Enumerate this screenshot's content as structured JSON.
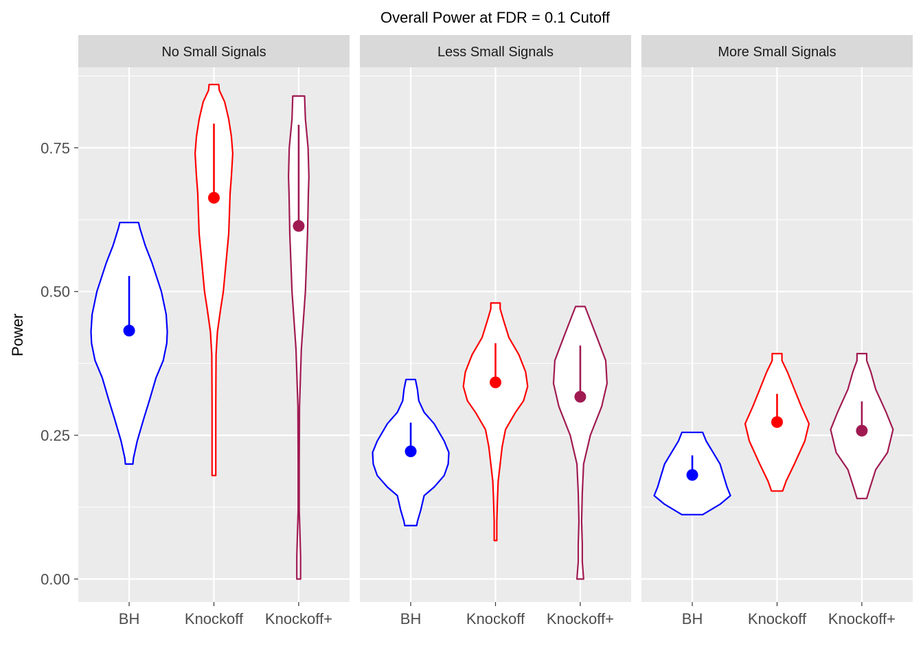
{
  "chart_data": {
    "type": "violin",
    "title": "Overall Power at FDR = 0.1 Cutoff",
    "ylabel": "Power",
    "xlabel": "",
    "ylim": [
      -0.04,
      0.89
    ],
    "yticks": [
      0.0,
      0.25,
      0.5,
      0.75
    ],
    "ytick_labels": [
      "0.00",
      "0.25",
      "0.50",
      "0.75"
    ],
    "categories": [
      "BH",
      "Knockoff",
      "Knockoff+"
    ],
    "colors": {
      "BH": "#0000ff",
      "Knockoff": "#ff0000",
      "Knockoff+": "#a01a52"
    },
    "panels": [
      {
        "name": "No Small Signals",
        "groups": [
          {
            "method": "BH",
            "mean": 0.432,
            "upper": 0.527,
            "min": 0.2,
            "max": 0.62,
            "profile": [
              [
                0.2,
                0.014
              ],
              [
                0.21,
                0.016
              ],
              [
                0.24,
                0.03
              ],
              [
                0.28,
                0.055
              ],
              [
                0.31,
                0.075
              ],
              [
                0.35,
                0.1
              ],
              [
                0.38,
                0.127
              ],
              [
                0.41,
                0.14
              ],
              [
                0.43,
                0.142
              ],
              [
                0.46,
                0.138
              ],
              [
                0.5,
                0.12
              ],
              [
                0.55,
                0.085
              ],
              [
                0.58,
                0.06
              ],
              [
                0.61,
                0.04
              ],
              [
                0.62,
                0.035
              ]
            ]
          },
          {
            "method": "Knockoff",
            "mean": 0.663,
            "upper": 0.792,
            "min": 0.18,
            "max": 0.86,
            "profile": [
              [
                0.18,
                0.007
              ],
              [
                0.2,
                0.007
              ],
              [
                0.3,
                0.007
              ],
              [
                0.39,
                0.008
              ],
              [
                0.43,
                0.013
              ],
              [
                0.47,
                0.025
              ],
              [
                0.5,
                0.035
              ],
              [
                0.55,
                0.045
              ],
              [
                0.6,
                0.055
              ],
              [
                0.64,
                0.058
              ],
              [
                0.67,
                0.06
              ],
              [
                0.7,
                0.065
              ],
              [
                0.74,
                0.07
              ],
              [
                0.77,
                0.065
              ],
              [
                0.8,
                0.055
              ],
              [
                0.83,
                0.04
              ],
              [
                0.85,
                0.02
              ],
              [
                0.86,
                0.018
              ]
            ]
          },
          {
            "method": "Knockoff+",
            "mean": 0.614,
            "upper": 0.79,
            "min": 0.0,
            "max": 0.84,
            "profile": [
              [
                0.0,
                0.007
              ],
              [
                0.04,
                0.007
              ],
              [
                0.09,
                0.004
              ],
              [
                0.12,
                0.002
              ],
              [
                0.2,
                0.002
              ],
              [
                0.3,
                0.003
              ],
              [
                0.4,
                0.01
              ],
              [
                0.5,
                0.025
              ],
              [
                0.6,
                0.033
              ],
              [
                0.67,
                0.036
              ],
              [
                0.7,
                0.038
              ],
              [
                0.75,
                0.035
              ],
              [
                0.8,
                0.025
              ],
              [
                0.84,
                0.022
              ]
            ]
          }
        ]
      },
      {
        "name": "Less Small Signals",
        "groups": [
          {
            "method": "BH",
            "mean": 0.222,
            "upper": 0.272,
            "min": 0.093,
            "max": 0.347,
            "profile": [
              [
                0.093,
                0.009
              ],
              [
                0.1,
                0.01
              ],
              [
                0.12,
                0.015
              ],
              [
                0.145,
                0.02
              ],
              [
                0.16,
                0.035
              ],
              [
                0.18,
                0.05
              ],
              [
                0.2,
                0.056
              ],
              [
                0.22,
                0.057
              ],
              [
                0.24,
                0.05
              ],
              [
                0.27,
                0.035
              ],
              [
                0.29,
                0.02
              ],
              [
                0.31,
                0.012
              ],
              [
                0.33,
                0.01
              ],
              [
                0.347,
                0.007
              ]
            ]
          },
          {
            "method": "Knockoff",
            "mean": 0.342,
            "upper": 0.41,
            "min": 0.067,
            "max": 0.48,
            "profile": [
              [
                0.067,
                0.002
              ],
              [
                0.1,
                0.002
              ],
              [
                0.14,
                0.003
              ],
              [
                0.17,
                0.004
              ],
              [
                0.2,
                0.007
              ],
              [
                0.23,
                0.01
              ],
              [
                0.26,
                0.015
              ],
              [
                0.29,
                0.03
              ],
              [
                0.31,
                0.042
              ],
              [
                0.335,
                0.048
              ],
              [
                0.36,
                0.045
              ],
              [
                0.39,
                0.035
              ],
              [
                0.42,
                0.02
              ],
              [
                0.45,
                0.012
              ],
              [
                0.47,
                0.007
              ],
              [
                0.48,
                0.007
              ]
            ]
          },
          {
            "method": "Knockoff+",
            "mean": 0.317,
            "upper": 0.406,
            "min": 0.0,
            "max": 0.474,
            "profile": [
              [
                0.0,
                0.005
              ],
              [
                0.03,
                0.003
              ],
              [
                0.06,
                0.003
              ],
              [
                0.1,
                0.002
              ],
              [
                0.15,
                0.003
              ],
              [
                0.2,
                0.005
              ],
              [
                0.25,
                0.015
              ],
              [
                0.3,
                0.032
              ],
              [
                0.34,
                0.04
              ],
              [
                0.38,
                0.038
              ],
              [
                0.42,
                0.025
              ],
              [
                0.45,
                0.015
              ],
              [
                0.474,
                0.007
              ]
            ]
          }
        ]
      },
      {
        "name": "More Small Signals",
        "groups": [
          {
            "method": "BH",
            "mean": 0.181,
            "upper": 0.215,
            "min": 0.112,
            "max": 0.255,
            "profile": [
              [
                0.112,
                0.015
              ],
              [
                0.13,
                0.04
              ],
              [
                0.145,
                0.055
              ],
              [
                0.16,
                0.05
              ],
              [
                0.18,
                0.045
              ],
              [
                0.2,
                0.04
              ],
              [
                0.22,
                0.03
              ],
              [
                0.24,
                0.02
              ],
              [
                0.255,
                0.015
              ]
            ]
          },
          {
            "method": "Knockoff",
            "mean": 0.273,
            "upper": 0.322,
            "min": 0.153,
            "max": 0.392,
            "profile": [
              [
                0.153,
                0.008
              ],
              [
                0.17,
                0.013
              ],
              [
                0.2,
                0.025
              ],
              [
                0.24,
                0.04
              ],
              [
                0.27,
                0.046
              ],
              [
                0.3,
                0.035
              ],
              [
                0.33,
                0.025
              ],
              [
                0.36,
                0.015
              ],
              [
                0.38,
                0.007
              ],
              [
                0.392,
                0.007
              ]
            ]
          },
          {
            "method": "Knockoff+",
            "mean": 0.258,
            "upper": 0.309,
            "min": 0.14,
            "max": 0.392,
            "profile": [
              [
                0.14,
                0.007
              ],
              [
                0.16,
                0.012
              ],
              [
                0.19,
                0.02
              ],
              [
                0.22,
                0.037
              ],
              [
                0.26,
                0.045
              ],
              [
                0.29,
                0.035
              ],
              [
                0.33,
                0.02
              ],
              [
                0.36,
                0.013
              ],
              [
                0.38,
                0.007
              ],
              [
                0.392,
                0.007
              ]
            ]
          }
        ]
      }
    ]
  }
}
